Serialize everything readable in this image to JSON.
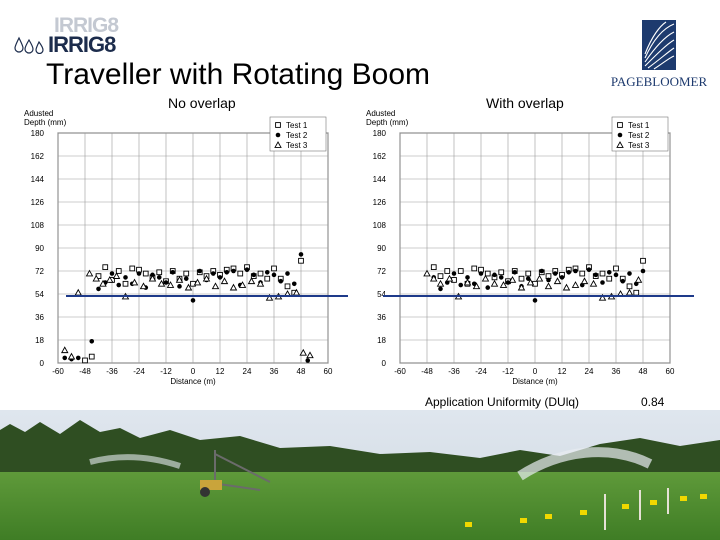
{
  "slide": {
    "title": "Traveller with Rotating Boom",
    "logo_left": "IRRIG8",
    "logo_right": "PAGEBLOOMER",
    "uniformity_label": "Application Uniformity (DUlq)",
    "uniformity_value": "0.84"
  },
  "colors": {
    "reference_line": "#1e3a8a",
    "grid": "#9a9a9a",
    "logo_navy": "#1d3a6e"
  },
  "chart_data": [
    {
      "type": "scatter",
      "title": "No overlap",
      "ylabel": "Adusted Depth (mm)",
      "xlabel": "Distance (m)",
      "xlim": [
        -60,
        60
      ],
      "ylim": [
        0,
        180
      ],
      "xticks": [
        "-60",
        "-48",
        "-36",
        "-24",
        "-12",
        "0",
        "12",
        "24",
        "36",
        "48",
        "60"
      ],
      "yticks": [
        "0",
        "18",
        "36",
        "54",
        "72",
        "90",
        "108",
        "126",
        "144",
        "162",
        "180"
      ],
      "legend": {
        "placement": "top-right",
        "entries": [
          "Test 1",
          "Test 2",
          "Test 3"
        ]
      },
      "reference_line": 54,
      "series": [
        {
          "name": "Test 1",
          "marker": "square-open",
          "x": [
            -48,
            -45,
            -42,
            -39,
            -36,
            -33,
            -30,
            -27,
            -24,
            -21,
            -18,
            -15,
            -12,
            -9,
            -6,
            -3,
            0,
            3,
            6,
            9,
            12,
            15,
            18,
            21,
            24,
            27,
            30,
            33,
            36,
            39,
            42,
            45,
            48
          ],
          "y": [
            2,
            5,
            68,
            75,
            65,
            72,
            62,
            74,
            73,
            70,
            67,
            71,
            64,
            72,
            66,
            70,
            62,
            71,
            68,
            72,
            69,
            73,
            74,
            70,
            75,
            68,
            70,
            66,
            74,
            66,
            60,
            55,
            80
          ]
        },
        {
          "name": "Test 2",
          "marker": "dot",
          "x": [
            -57,
            -54,
            -51,
            -45,
            -42,
            -39,
            -36,
            -33,
            -30,
            -27,
            -24,
            -21,
            -18,
            -15,
            -12,
            -9,
            -6,
            -3,
            0,
            3,
            6,
            9,
            12,
            15,
            18,
            21,
            24,
            27,
            30,
            33,
            36,
            39,
            42,
            45,
            48,
            51
          ],
          "y": [
            4,
            3,
            4,
            17,
            58,
            63,
            70,
            61,
            67,
            62,
            70,
            59,
            69,
            67,
            63,
            71,
            60,
            66,
            49,
            72,
            65,
            70,
            67,
            71,
            72,
            61,
            73,
            69,
            63,
            71,
            69,
            64,
            70,
            62,
            85,
            2
          ]
        },
        {
          "name": "Test 3",
          "marker": "triangle-open",
          "x": [
            -57,
            -54,
            -51,
            -46,
            -43,
            -40,
            -37,
            -34,
            -30,
            -26,
            -22,
            -18,
            -14,
            -10,
            -6,
            -2,
            2,
            6,
            10,
            14,
            18,
            22,
            26,
            30,
            34,
            38,
            42,
            46,
            49,
            52
          ],
          "y": [
            10,
            5,
            55,
            70,
            66,
            62,
            65,
            68,
            52,
            63,
            60,
            66,
            62,
            61,
            65,
            59,
            63,
            66,
            60,
            64,
            59,
            61,
            64,
            62,
            51,
            52,
            54,
            55,
            8,
            6
          ]
        }
      ]
    },
    {
      "type": "scatter",
      "title": "With overlap",
      "ylabel": "Adusted Depth (mm)",
      "xlabel": "Distance (m)",
      "xlim": [
        -60,
        60
      ],
      "ylim": [
        0,
        180
      ],
      "xticks": [
        "-60",
        "-48",
        "-36",
        "-24",
        "-12",
        "0",
        "12",
        "24",
        "36",
        "48",
        "60"
      ],
      "yticks": [
        "0",
        "18",
        "36",
        "54",
        "72",
        "90",
        "108",
        "126",
        "144",
        "162",
        "180"
      ],
      "legend": {
        "placement": "top-right",
        "entries": [
          "Test 1",
          "Test 2",
          "Test 3"
        ]
      },
      "reference_line": 54,
      "series": [
        {
          "name": "Test 1",
          "marker": "square-open",
          "x": [
            -45,
            -42,
            -39,
            -36,
            -33,
            -30,
            -27,
            -24,
            -21,
            -18,
            -15,
            -12,
            -9,
            -6,
            -3,
            0,
            3,
            6,
            9,
            12,
            15,
            18,
            21,
            24,
            27,
            30,
            33,
            36,
            39,
            42,
            45,
            48
          ],
          "y": [
            75,
            68,
            72,
            65,
            72,
            62,
            74,
            73,
            70,
            67,
            71,
            64,
            72,
            66,
            70,
            62,
            71,
            68,
            72,
            69,
            73,
            74,
            70,
            75,
            68,
            70,
            66,
            74,
            66,
            60,
            55,
            80
          ]
        },
        {
          "name": "Test 2",
          "marker": "dot",
          "x": [
            -45,
            -42,
            -39,
            -36,
            -33,
            -30,
            -27,
            -24,
            -21,
            -18,
            -15,
            -12,
            -9,
            -6,
            -3,
            0,
            3,
            6,
            9,
            12,
            15,
            18,
            21,
            24,
            27,
            30,
            33,
            36,
            39,
            42,
            45,
            48
          ],
          "y": [
            67,
            58,
            63,
            70,
            61,
            67,
            62,
            70,
            59,
            69,
            67,
            63,
            71,
            60,
            66,
            49,
            72,
            65,
            70,
            67,
            71,
            72,
            61,
            73,
            69,
            63,
            71,
            69,
            64,
            70,
            62,
            72
          ]
        },
        {
          "name": "Test 3",
          "marker": "triangle-open",
          "x": [
            -48,
            -45,
            -42,
            -38,
            -34,
            -30,
            -26,
            -22,
            -18,
            -14,
            -10,
            -6,
            -2,
            2,
            6,
            10,
            14,
            18,
            22,
            26,
            30,
            34,
            38,
            42,
            46
          ],
          "y": [
            70,
            66,
            62,
            66,
            52,
            63,
            60,
            66,
            62,
            61,
            65,
            59,
            63,
            66,
            60,
            64,
            59,
            61,
            64,
            62,
            51,
            52,
            54,
            55,
            65
          ]
        }
      ]
    }
  ]
}
